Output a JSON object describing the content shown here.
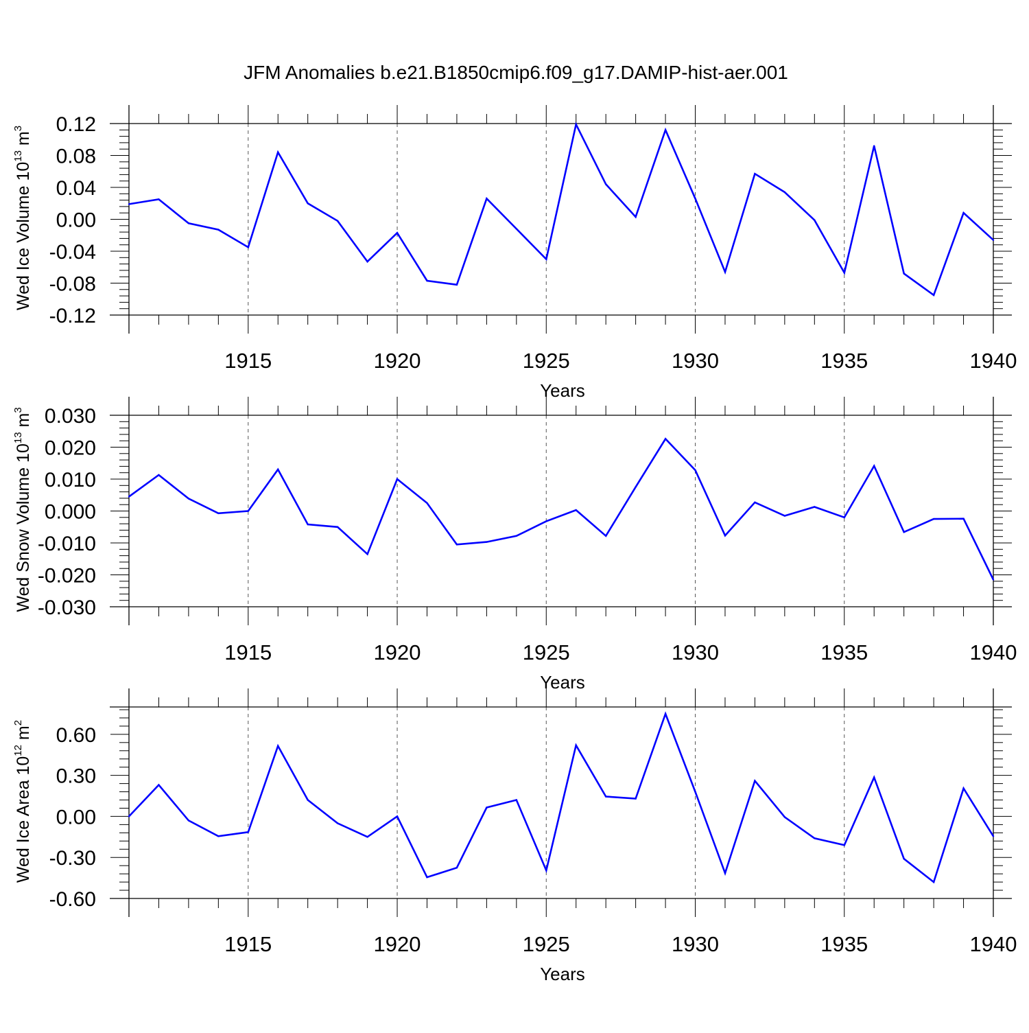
{
  "title": "JFM Anomalies b.e21.B1850cmip6.f09_g17.DAMIP-hist-aer.001",
  "colors": {
    "line": "#0000ff",
    "axis": "#000000",
    "grid": "#555555"
  },
  "chart_data": [
    {
      "type": "line",
      "ylabel": {
        "text": "Wed Ice Volume 10",
        "sup": "13",
        "unit": " m",
        "unit_sup": "3"
      },
      "xlabel": "Years",
      "xlim": [
        1911,
        1940
      ],
      "ylim": [
        -0.12,
        0.12
      ],
      "yticks": [
        "0.12",
        "0.08",
        "0.04",
        "0.00",
        "-0.04",
        "-0.08",
        "-0.12"
      ],
      "ytick_values": [
        0.12,
        0.08,
        0.04,
        0.0,
        -0.04,
        -0.08,
        -0.12
      ],
      "xticks": [
        "1915",
        "1920",
        "1925",
        "1930",
        "1935",
        "1940"
      ],
      "xtick_values": [
        1915,
        1920,
        1925,
        1930,
        1935,
        1940
      ],
      "vertical_grid": "dashed at major x ticks",
      "series": [
        {
          "x": [
            1911,
            1912,
            1913,
            1914,
            1915,
            1916,
            1917,
            1918,
            1919,
            1920,
            1921,
            1922,
            1923,
            1924,
            1925,
            1926,
            1927,
            1928,
            1929,
            1930,
            1931,
            1932,
            1933,
            1934,
            1935,
            1936,
            1937,
            1938,
            1939,
            1940
          ],
          "values": [
            0.019,
            0.025,
            -0.005,
            -0.013,
            -0.035,
            0.084,
            0.02,
            -0.002,
            -0.053,
            -0.017,
            -0.077,
            -0.082,
            0.026,
            -0.012,
            -0.05,
            0.119,
            0.044,
            0.003,
            0.112,
            0.026,
            -0.066,
            0.057,
            0.034,
            -0.001,
            -0.067,
            0.092,
            -0.068,
            -0.095,
            0.008,
            -0.026
          ]
        }
      ]
    },
    {
      "type": "line",
      "ylabel": {
        "text": "Wed Snow Volume 10",
        "sup": "13",
        "unit": " m",
        "unit_sup": "3"
      },
      "xlabel": "Years",
      "xlim": [
        1911,
        1940
      ],
      "ylim": [
        -0.03,
        0.03
      ],
      "yticks": [
        "0.030",
        "0.020",
        "0.010",
        "0.000",
        "-0.010",
        "-0.020",
        "-0.030"
      ],
      "ytick_values": [
        0.03,
        0.02,
        0.01,
        0.0,
        -0.01,
        -0.02,
        -0.03
      ],
      "xticks": [
        "1915",
        "1920",
        "1925",
        "1930",
        "1935",
        "1940"
      ],
      "xtick_values": [
        1915,
        1920,
        1925,
        1930,
        1935,
        1940
      ],
      "vertical_grid": "dashed at major x ticks",
      "series": [
        {
          "x": [
            1911,
            1912,
            1913,
            1914,
            1915,
            1916,
            1917,
            1918,
            1919,
            1920,
            1921,
            1922,
            1923,
            1924,
            1925,
            1926,
            1927,
            1928,
            1929,
            1930,
            1931,
            1932,
            1933,
            1934,
            1935,
            1936,
            1937,
            1938,
            1939,
            1940
          ],
          "values": [
            0.0045,
            0.0113,
            0.0039,
            -0.0007,
            0.0,
            0.013,
            -0.0042,
            -0.005,
            -0.0135,
            0.01,
            0.0025,
            -0.0105,
            -0.0097,
            -0.0078,
            -0.0032,
            0.0003,
            -0.0078,
            0.0075,
            0.0226,
            0.0128,
            -0.0077,
            0.0027,
            -0.0015,
            0.0013,
            -0.002,
            0.0141,
            -0.0066,
            -0.0025,
            -0.0024,
            -0.0215
          ]
        }
      ]
    },
    {
      "type": "line",
      "ylabel": {
        "text": "Wed Ice Area 10",
        "sup": "12",
        "unit": " m",
        "unit_sup": "2"
      },
      "xlabel": "Years",
      "xlim": [
        1911,
        1940
      ],
      "ylim": [
        -0.6,
        0.8
      ],
      "yticks": [
        "0.60",
        "0.30",
        "0.00",
        "-0.30",
        "-0.60"
      ],
      "ytick_values": [
        0.6,
        0.3,
        0.0,
        -0.3,
        -0.6
      ],
      "xticks": [
        "1915",
        "1920",
        "1925",
        "1930",
        "1935",
        "1940"
      ],
      "xtick_values": [
        1915,
        1920,
        1925,
        1930,
        1935,
        1940
      ],
      "vertical_grid": "dashed at major x ticks",
      "series": [
        {
          "x": [
            1911,
            1912,
            1913,
            1914,
            1915,
            1916,
            1917,
            1918,
            1919,
            1920,
            1921,
            1922,
            1923,
            1924,
            1925,
            1926,
            1927,
            1928,
            1929,
            1930,
            1931,
            1932,
            1933,
            1934,
            1935,
            1936,
            1937,
            1938,
            1939,
            1940
          ],
          "values": [
            0.0,
            0.23,
            -0.03,
            -0.145,
            -0.115,
            0.515,
            0.12,
            -0.05,
            -0.15,
            0.0,
            -0.445,
            -0.375,
            0.065,
            0.12,
            -0.395,
            0.52,
            0.145,
            0.13,
            0.75,
            0.18,
            -0.415,
            0.26,
            -0.005,
            -0.16,
            -0.21,
            0.285,
            -0.31,
            -0.48,
            0.205,
            -0.145
          ]
        }
      ]
    }
  ]
}
